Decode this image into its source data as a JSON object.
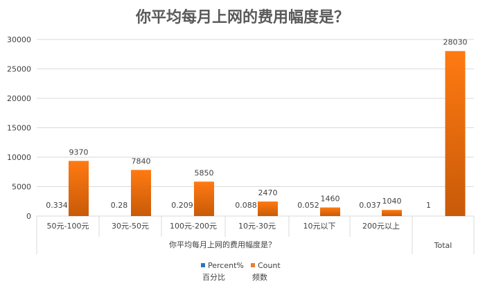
{
  "chart_data": {
    "type": "bar",
    "title": "你平均每月上网的费用幅度是？",
    "group_label": "你平均每月上网的费用幅度是？",
    "categories": [
      "50元-100元",
      "30元-50元",
      "100元-200元",
      "10元-30元",
      "10元以下",
      "200元以上",
      "Total"
    ],
    "series": [
      {
        "name": "Percent% 百分比",
        "values": [
          0.334,
          0.28,
          0.209,
          0.088,
          0.052,
          0.037,
          1
        ],
        "labels": [
          "0.334",
          "0.28",
          "0.209",
          "0.088",
          "0.052",
          "0.037",
          "1"
        ],
        "color": "#2e75b6"
      },
      {
        "name": "Count 频数",
        "values": [
          9370,
          7840,
          5850,
          2470,
          1460,
          1040,
          28030
        ],
        "labels": [
          "9370",
          "7840",
          "5850",
          "2470",
          "1460",
          "1040",
          "28030"
        ],
        "color": "#ed7d31"
      }
    ],
    "yticks": [
      "0",
      "5000",
      "10000",
      "15000",
      "20000",
      "25000",
      "30000"
    ],
    "ylim": [
      0,
      30000
    ],
    "grid": true,
    "legend": {
      "position": "bottom",
      "items": [
        {
          "line1": "Percent%",
          "line2": "百分比",
          "color": "#2e75b6"
        },
        {
          "line1": "Count",
          "line2": "频数",
          "color": "#ed7d31"
        }
      ]
    }
  }
}
